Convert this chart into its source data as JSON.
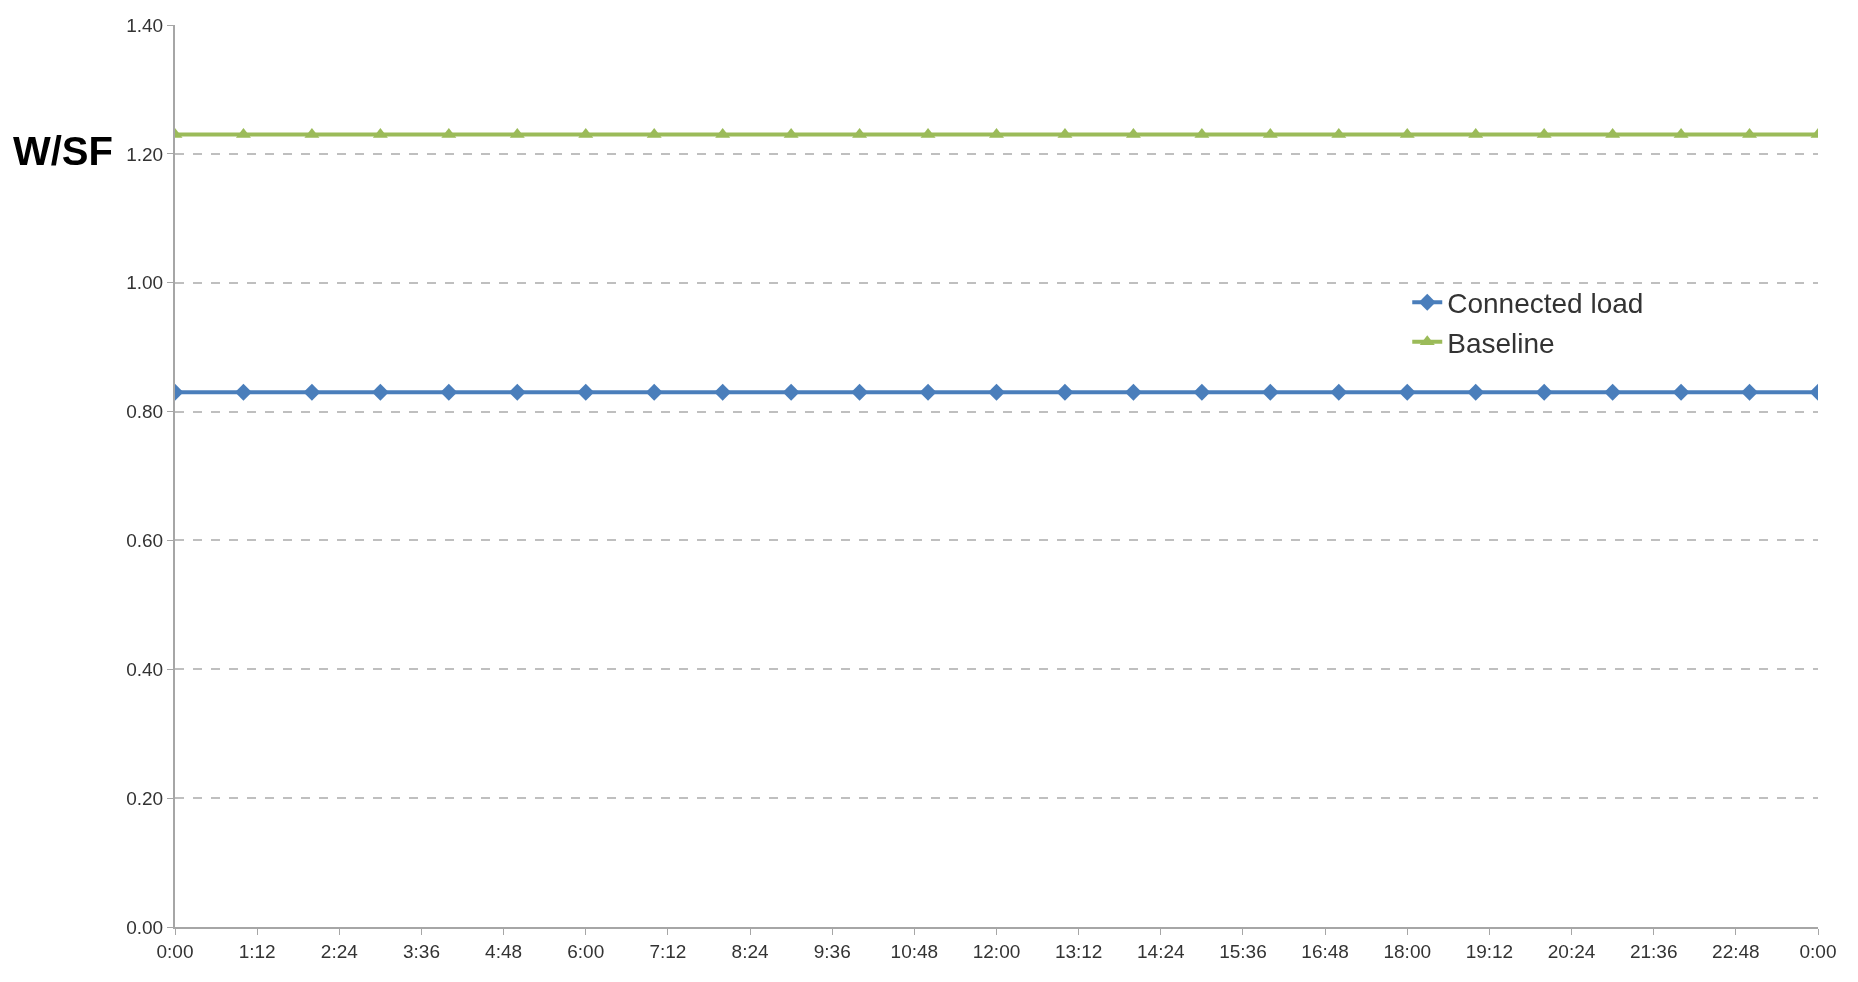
{
  "chart_data": {
    "type": "line",
    "ylabel": "W/SF",
    "x": [
      0,
      1,
      2,
      3,
      4,
      5,
      6,
      7,
      8,
      9,
      10,
      11,
      12,
      13,
      14,
      15,
      16,
      17,
      18,
      19,
      20,
      21,
      22,
      23,
      24
    ],
    "series": [
      {
        "name": "Connected load",
        "color": "#4a7ebb",
        "marker": "diamond",
        "values": [
          0.83,
          0.83,
          0.83,
          0.83,
          0.83,
          0.83,
          0.83,
          0.83,
          0.83,
          0.83,
          0.83,
          0.83,
          0.83,
          0.83,
          0.83,
          0.83,
          0.83,
          0.83,
          0.83,
          0.83,
          0.83,
          0.83,
          0.83,
          0.83,
          0.83
        ]
      },
      {
        "name": "Baseline",
        "color": "#9bbb59",
        "marker": "triangle",
        "values": [
          1.23,
          1.23,
          1.23,
          1.23,
          1.23,
          1.23,
          1.23,
          1.23,
          1.23,
          1.23,
          1.23,
          1.23,
          1.23,
          1.23,
          1.23,
          1.23,
          1.23,
          1.23,
          1.23,
          1.23,
          1.23,
          1.23,
          1.23,
          1.23,
          1.23
        ]
      }
    ],
    "xlim": [
      0,
      24
    ],
    "xticks": [
      {
        "value": 0,
        "label": "0:00"
      },
      {
        "value": 1.2,
        "label": "1:12"
      },
      {
        "value": 2.4,
        "label": "2:24"
      },
      {
        "value": 3.6,
        "label": "3:36"
      },
      {
        "value": 4.8,
        "label": "4:48"
      },
      {
        "value": 6,
        "label": "6:00"
      },
      {
        "value": 7.2,
        "label": "7:12"
      },
      {
        "value": 8.4,
        "label": "8:24"
      },
      {
        "value": 9.6,
        "label": "9:36"
      },
      {
        "value": 10.8,
        "label": "10:48"
      },
      {
        "value": 12,
        "label": "12:00"
      },
      {
        "value": 13.2,
        "label": "13:12"
      },
      {
        "value": 14.4,
        "label": "14:24"
      },
      {
        "value": 15.6,
        "label": "15:36"
      },
      {
        "value": 16.8,
        "label": "16:48"
      },
      {
        "value": 18,
        "label": "18:00"
      },
      {
        "value": 19.2,
        "label": "19:12"
      },
      {
        "value": 20.4,
        "label": "20:24"
      },
      {
        "value": 21.6,
        "label": "21:36"
      },
      {
        "value": 22.8,
        "label": "22:48"
      },
      {
        "value": 24,
        "label": "0:00"
      }
    ],
    "ylim": [
      0,
      1.4
    ],
    "yticks": [
      {
        "value": 0,
        "label": "0.00"
      },
      {
        "value": 0.2,
        "label": "0.20"
      },
      {
        "value": 0.4,
        "label": "0.40"
      },
      {
        "value": 0.6,
        "label": "0.60"
      },
      {
        "value": 0.8,
        "label": "0.80"
      },
      {
        "value": 1.0,
        "label": "1.00"
      },
      {
        "value": 1.2,
        "label": "1.20"
      },
      {
        "value": 1.4,
        "label": "1.40"
      }
    ],
    "grid": "y",
    "legend": "top right",
    "line_style": "solid"
  }
}
